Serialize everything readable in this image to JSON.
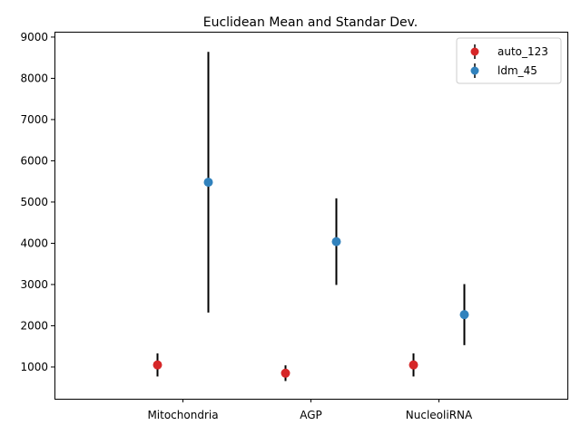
{
  "chart_data": {
    "type": "scatter",
    "title": "Euclidean Mean and Standar Dev.",
    "xlabel": "",
    "ylabel": "",
    "categories": [
      "Mitochondria",
      "AGP",
      "NucleoliRNA"
    ],
    "ylim": [
      230,
      9130
    ],
    "yticks": [
      1000,
      2000,
      3000,
      4000,
      5000,
      6000,
      7000,
      8000,
      9000
    ],
    "grid": false,
    "legend_position": "top-right",
    "series": [
      {
        "name": "auto_123",
        "color": "#d62728",
        "marker": "circle",
        "values": [
          1050,
          850,
          1050
        ],
        "errors": [
          280,
          190,
          280
        ]
      },
      {
        "name": "ldm_45",
        "color": "#3182bd",
        "marker": "circle",
        "values": [
          5480,
          4040,
          2270
        ],
        "errors": [
          3160,
          1050,
          740
        ]
      }
    ]
  }
}
